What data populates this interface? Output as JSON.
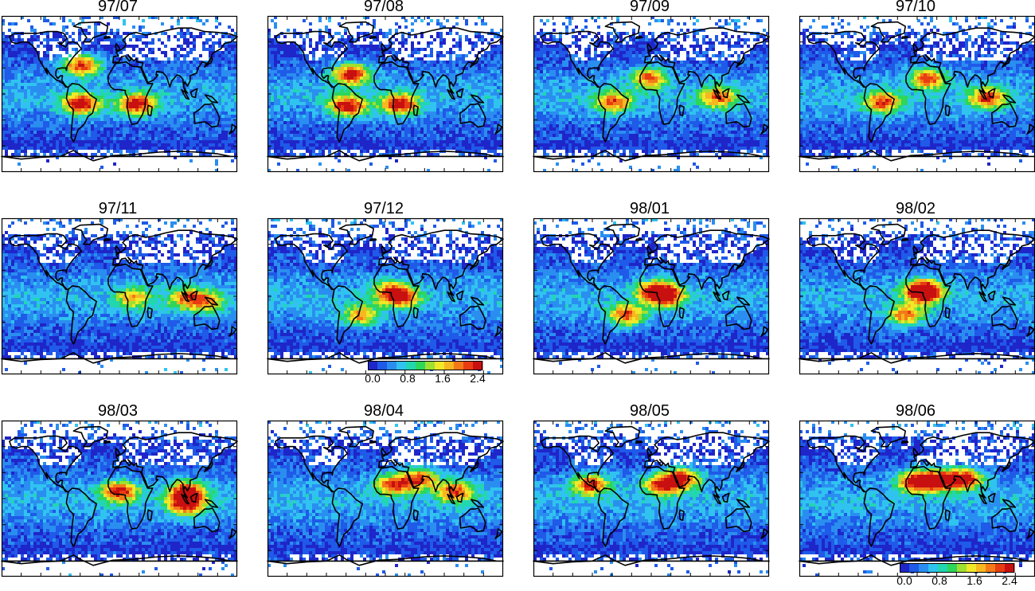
{
  "panels": [
    {
      "label": "97/07",
      "hot": [
        [
          -60,
          35
        ],
        [
          25,
          -10
        ],
        [
          -60,
          -10
        ]
      ],
      "intensity": 1.0
    },
    {
      "label": "97/08",
      "hot": [
        [
          -55,
          25
        ],
        [
          20,
          -10
        ],
        [
          -60,
          -12
        ]
      ],
      "intensity": 1.0
    },
    {
      "label": "97/09",
      "hot": [
        [
          -5,
          20
        ],
        [
          100,
          -2
        ],
        [
          -60,
          -8
        ]
      ],
      "intensity": 0.8
    },
    {
      "label": "97/10",
      "hot": [
        [
          105,
          -3
        ],
        [
          -55,
          -8
        ],
        [
          15,
          20
        ]
      ],
      "intensity": 0.85
    },
    {
      "label": "97/11",
      "hot": [
        [
          100,
          0
        ],
        [
          130,
          -5
        ],
        [
          20,
          0
        ]
      ],
      "intensity": 0.6
    },
    {
      "label": "97/12",
      "hot": [
        [
          5,
          8
        ],
        [
          25,
          0
        ],
        [
          -40,
          -20
        ]
      ],
      "intensity": 0.7
    },
    {
      "label": "98/01",
      "hot": [
        [
          5,
          8
        ],
        [
          20,
          2
        ],
        [
          -40,
          -20
        ]
      ],
      "intensity": 0.85
    },
    {
      "label": "98/02",
      "hot": [
        [
          10,
          5
        ],
        [
          5,
          10
        ],
        [
          -20,
          -20
        ]
      ],
      "intensity": 0.75
    },
    {
      "label": "98/03",
      "hot": [
        [
          -2,
          10
        ],
        [
          100,
          10
        ],
        [
          100,
          -5
        ]
      ],
      "intensity": 0.95
    },
    {
      "label": "98/04",
      "hot": [
        [
          10,
          18
        ],
        [
          50,
          25
        ],
        [
          105,
          10
        ]
      ],
      "intensity": 0.85
    },
    {
      "label": "98/05",
      "hot": [
        [
          -95,
          18
        ],
        [
          15,
          18
        ],
        [
          45,
          25
        ]
      ],
      "intensity": 0.9
    },
    {
      "label": "98/06",
      "hot": [
        [
          -5,
          22
        ],
        [
          30,
          22
        ],
        [
          70,
          25
        ]
      ],
      "intensity": 1.0
    }
  ],
  "colorbar": {
    "ticks": [
      "0.0",
      "0.8",
      "1.6",
      "2.4"
    ],
    "colors": [
      "#1f26c9",
      "#1f5ae8",
      "#2a8ef0",
      "#30c3f0",
      "#22d6b0",
      "#2ed65a",
      "#9fe030",
      "#f0e828",
      "#f5b820",
      "#f27a18",
      "#e83c12",
      "#c81010"
    ]
  }
}
